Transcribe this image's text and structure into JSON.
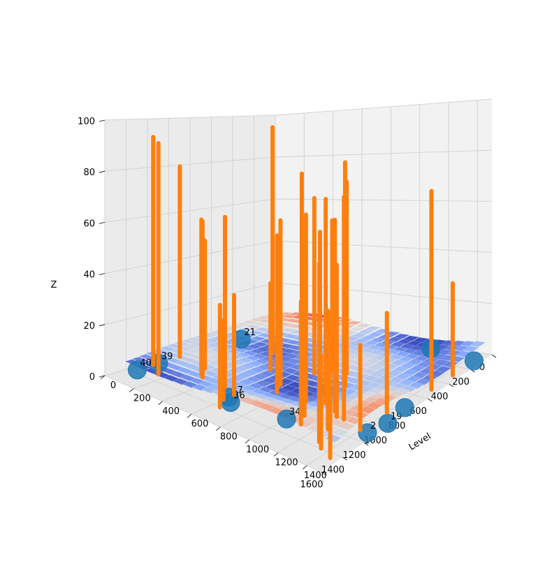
{
  "chart_data": {
    "type": "3d-scatter-surface",
    "title": "",
    "x_axis": {
      "label": "Level",
      "range": [
        0,
        1500
      ],
      "ticks": [
        "0",
        "200",
        "400",
        "600",
        "800",
        "1000",
        "1200",
        "1400"
      ],
      "tick_values": [
        0,
        200,
        400,
        600,
        800,
        1000,
        1200,
        1400
      ]
    },
    "y_axis": {
      "label": "",
      "range": [
        0,
        1600
      ],
      "ticks": [
        "0",
        "200",
        "400",
        "600",
        "800",
        "1000",
        "1200",
        "1400",
        "1600"
      ],
      "tick_values": [
        0,
        200,
        400,
        600,
        800,
        1000,
        1200,
        1400,
        1600
      ]
    },
    "z_axis": {
      "label": "Z",
      "range": [
        0,
        100
      ],
      "ticks": [
        "0",
        "20",
        "40",
        "60",
        "80",
        "100"
      ],
      "tick_values": [
        0,
        20,
        40,
        60,
        80,
        100
      ]
    },
    "grid": true,
    "surface": {
      "colormap": "coolwarm",
      "z_level": 0
    },
    "scatter": {
      "color": "#1f77b4",
      "points": [
        {
          "label": "39",
          "x": 40,
          "y": 1150,
          "z": 0
        },
        {
          "label": "40",
          "x": 40,
          "y": 1350,
          "z": 0
        },
        {
          "label": "37",
          "x": 600,
          "y": 1250,
          "z": 0
        },
        {
          "label": "36",
          "x": 650,
          "y": 1300,
          "z": 0
        },
        {
          "label": "34",
          "x": 1000,
          "y": 1250,
          "z": 0
        },
        {
          "label": "2",
          "x": 1450,
          "y": 1100,
          "z": 0
        },
        {
          "label": "19",
          "x": 1480,
          "y": 950,
          "z": 0
        },
        {
          "label": "",
          "x": 1450,
          "y": 750,
          "z": 0
        },
        {
          "label": "",
          "x": 1450,
          "y": 100,
          "z": 0
        },
        {
          "label": "",
          "x": 1100,
          "y": 30,
          "z": 0
        },
        {
          "label": "21",
          "x": 60,
          "y": 400,
          "z": 0
        }
      ]
    },
    "stems": {
      "color": "#ff7f0e",
      "points": [
        {
          "x": 40,
          "y": 950,
          "z": 80
        },
        {
          "x": 40,
          "y": 1200,
          "z": 93
        },
        {
          "x": 150,
          "y": 1300,
          "z": 92
        },
        {
          "x": 50,
          "y": 750,
          "z": 48
        },
        {
          "x": 350,
          "y": 500,
          "z": 96
        },
        {
          "x": 250,
          "y": 1000,
          "z": 52
        },
        {
          "x": 300,
          "y": 1100,
          "z": 62
        },
        {
          "x": 330,
          "y": 1130,
          "z": 62
        },
        {
          "x": 500,
          "y": 1150,
          "z": 66
        },
        {
          "x": 520,
          "y": 750,
          "z": 35
        },
        {
          "x": 600,
          "y": 1200,
          "z": 38
        },
        {
          "x": 600,
          "y": 1300,
          "z": 30
        },
        {
          "x": 650,
          "y": 1400,
          "z": 38
        },
        {
          "x": 700,
          "y": 700,
          "z": 80
        },
        {
          "x": 700,
          "y": 900,
          "z": 64
        },
        {
          "x": 750,
          "y": 650,
          "z": 70
        },
        {
          "x": 750,
          "y": 1000,
          "z": 60
        },
        {
          "x": 800,
          "y": 550,
          "z": 60
        },
        {
          "x": 900,
          "y": 550,
          "z": 76
        },
        {
          "x": 900,
          "y": 800,
          "z": 60
        },
        {
          "x": 950,
          "y": 1000,
          "z": 70
        },
        {
          "x": 1000,
          "y": 700,
          "z": 86
        },
        {
          "x": 1050,
          "y": 950,
          "z": 76
        },
        {
          "x": 1050,
          "y": 1150,
          "z": 62
        },
        {
          "x": 1100,
          "y": 1250,
          "z": 44
        },
        {
          "x": 1150,
          "y": 1000,
          "z": 70
        },
        {
          "x": 1200,
          "y": 1050,
          "z": 55
        },
        {
          "x": 1250,
          "y": 1200,
          "z": 42
        },
        {
          "x": 1250,
          "y": 1050,
          "z": 80
        },
        {
          "x": 1300,
          "y": 1350,
          "z": 62
        },
        {
          "x": 1350,
          "y": 1400,
          "z": 32
        },
        {
          "x": 1400,
          "y": 1100,
          "z": 30
        },
        {
          "x": 1400,
          "y": 850,
          "z": 36
        },
        {
          "x": 1450,
          "y": 1450,
          "z": 48
        },
        {
          "x": 1450,
          "y": 500,
          "z": 74
        },
        {
          "x": 1450,
          "y": 300,
          "z": 35
        }
      ]
    }
  }
}
